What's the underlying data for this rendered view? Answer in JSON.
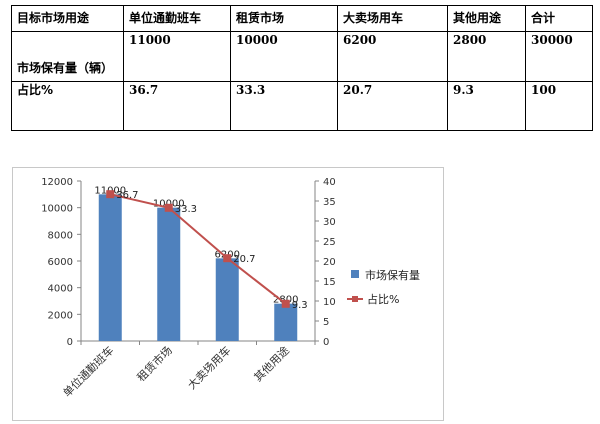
{
  "table": {
    "header": [
      "目标市场用途",
      "单位通勤班车",
      "租赁市场",
      "大卖场用车",
      "其他用途",
      "合计"
    ],
    "rows": [
      {
        "label": "市场保有量（辆）",
        "values": [
          "11000",
          "10000",
          "6200",
          "2800",
          "30000"
        ]
      },
      {
        "label": "占比%",
        "values": [
          "36.7",
          "33.3",
          "20.7",
          "9.3",
          "100"
        ]
      }
    ]
  },
  "chart_data": {
    "type": "bar",
    "categories": [
      "单位通勤班车",
      "租赁市场",
      "大卖场用车",
      "其他用途"
    ],
    "series": [
      {
        "name": "市场保有量",
        "type": "bar",
        "axis": "left",
        "values": [
          11000,
          10000,
          6200,
          2800
        ],
        "color": "#4f81bd"
      },
      {
        "name": "占比%",
        "type": "line",
        "axis": "right",
        "values": [
          36.7,
          33.3,
          20.7,
          9.3
        ],
        "color": "#c0504d"
      }
    ],
    "y_left": {
      "min": 0,
      "max": 12000,
      "ticks": [
        0,
        2000,
        4000,
        6000,
        8000,
        10000,
        12000
      ]
    },
    "y_right": {
      "min": 0,
      "max": 40,
      "ticks": [
        0,
        5,
        10,
        15,
        20,
        25,
        30,
        35,
        40
      ]
    },
    "grid": false,
    "legend_position": "right",
    "data_labels": true
  }
}
